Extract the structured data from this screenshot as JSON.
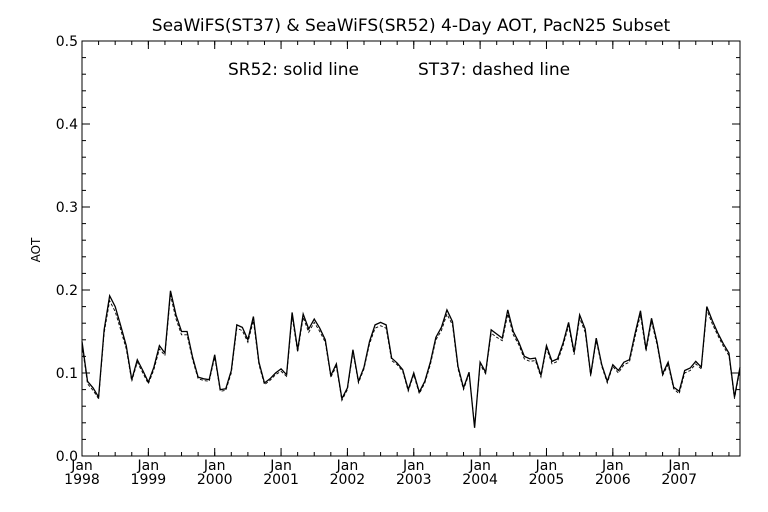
{
  "chart_data": {
    "type": "line",
    "title": "SeaWiFS(ST37) & SeaWiFS(SR52) 4-Day AOT, PacN25 Subset",
    "annotation": {
      "sr52": "SR52: solid line",
      "st37": "ST37: dashed line"
    },
    "ylabel": "AOT",
    "xlabel": "",
    "ylim": [
      0.0,
      0.5
    ],
    "xlim": [
      "1998-01",
      "2007-12"
    ],
    "yticks": [
      "0.0",
      "0.1",
      "0.2",
      "0.3",
      "0.4",
      "0.5"
    ],
    "xticks": [
      {
        "month": "Jan",
        "year": "1998"
      },
      {
        "month": "Jan",
        "year": "1999"
      },
      {
        "month": "Jan",
        "year": "2000"
      },
      {
        "month": "Jan",
        "year": "2001"
      },
      {
        "month": "Jan",
        "year": "2002"
      },
      {
        "month": "Jan",
        "year": "2003"
      },
      {
        "month": "Jan",
        "year": "2004"
      },
      {
        "month": "Jan",
        "year": "2005"
      },
      {
        "month": "Jan",
        "year": "2006"
      },
      {
        "month": "Jan",
        "year": "2007"
      }
    ],
    "x": [
      "1998-01",
      "1998-02",
      "1998-03",
      "1998-04",
      "1998-05",
      "1998-06",
      "1998-07",
      "1998-08",
      "1998-09",
      "1998-10",
      "1998-11",
      "1998-12",
      "1999-01",
      "1999-02",
      "1999-03",
      "1999-04",
      "1999-05",
      "1999-06",
      "1999-07",
      "1999-08",
      "1999-09",
      "1999-10",
      "1999-11",
      "1999-12",
      "2000-01",
      "2000-02",
      "2000-03",
      "2000-04",
      "2000-05",
      "2000-06",
      "2000-07",
      "2000-08",
      "2000-09",
      "2000-10",
      "2000-11",
      "2000-12",
      "2001-01",
      "2001-02",
      "2001-03",
      "2001-04",
      "2001-05",
      "2001-06",
      "2001-07",
      "2001-08",
      "2001-09",
      "2001-10",
      "2001-11",
      "2001-12",
      "2002-01",
      "2002-02",
      "2002-03",
      "2002-04",
      "2002-05",
      "2002-06",
      "2002-07",
      "2002-08",
      "2002-09",
      "2002-10",
      "2002-11",
      "2002-12",
      "2003-01",
      "2003-02",
      "2003-03",
      "2003-04",
      "2003-05",
      "2003-06",
      "2003-07",
      "2003-08",
      "2003-09",
      "2003-10",
      "2003-11",
      "2003-12",
      "2004-01",
      "2004-02",
      "2004-03",
      "2004-04",
      "2004-05",
      "2004-06",
      "2004-07",
      "2004-08",
      "2004-09",
      "2004-10",
      "2004-11",
      "2004-12",
      "2005-01",
      "2005-02",
      "2005-03",
      "2005-04",
      "2005-05",
      "2005-06",
      "2005-07",
      "2005-08",
      "2005-09",
      "2005-10",
      "2005-11",
      "2005-12",
      "2006-01",
      "2006-02",
      "2006-03",
      "2006-04",
      "2006-05",
      "2006-06",
      "2006-07",
      "2006-08",
      "2006-09",
      "2006-10",
      "2006-11",
      "2006-12",
      "2007-01",
      "2007-02",
      "2007-03",
      "2007-04",
      "2007-05",
      "2007-06",
      "2007-07",
      "2007-08",
      "2007-09",
      "2007-10",
      "2007-11",
      "2007-12"
    ],
    "series": [
      {
        "name": "SR52",
        "style": "solid",
        "values": [
          0.138,
          0.09,
          0.082,
          0.071,
          0.152,
          0.193,
          0.18,
          0.157,
          0.133,
          0.092,
          0.116,
          0.103,
          0.089,
          0.107,
          0.133,
          0.124,
          0.199,
          0.17,
          0.15,
          0.15,
          0.119,
          0.095,
          0.093,
          0.092,
          0.122,
          0.08,
          0.081,
          0.103,
          0.158,
          0.155,
          0.14,
          0.168,
          0.113,
          0.088,
          0.093,
          0.1,
          0.105,
          0.098,
          0.173,
          0.128,
          0.171,
          0.153,
          0.165,
          0.154,
          0.14,
          0.097,
          0.111,
          0.069,
          0.082,
          0.128,
          0.09,
          0.107,
          0.138,
          0.158,
          0.161,
          0.158,
          0.118,
          0.112,
          0.104,
          0.08,
          0.1,
          0.077,
          0.09,
          0.113,
          0.143,
          0.155,
          0.176,
          0.162,
          0.108,
          0.082,
          0.101,
          0.034,
          0.113,
          0.101,
          0.152,
          0.147,
          0.142,
          0.176,
          0.15,
          0.137,
          0.12,
          0.117,
          0.118,
          0.097,
          0.133,
          0.114,
          0.117,
          0.136,
          0.161,
          0.125,
          0.17,
          0.153,
          0.098,
          0.142,
          0.11,
          0.09,
          0.11,
          0.103,
          0.113,
          0.116,
          0.147,
          0.175,
          0.129,
          0.166,
          0.137,
          0.099,
          0.113,
          0.083,
          0.078,
          0.103,
          0.106,
          0.114,
          0.107,
          0.18,
          0.163,
          0.148,
          0.135,
          0.124,
          0.071,
          0.107
        ]
      },
      {
        "name": "ST37",
        "style": "dashed",
        "values": [
          0.134,
          0.087,
          0.079,
          0.069,
          0.148,
          0.187,
          0.174,
          0.152,
          0.129,
          0.09,
          0.113,
          0.1,
          0.087,
          0.104,
          0.129,
          0.121,
          0.194,
          0.165,
          0.146,
          0.146,
          0.116,
          0.093,
          0.091,
          0.09,
          0.119,
          0.078,
          0.079,
          0.1,
          0.154,
          0.151,
          0.137,
          0.163,
          0.11,
          0.086,
          0.091,
          0.098,
          0.102,
          0.096,
          0.168,
          0.125,
          0.167,
          0.149,
          0.161,
          0.15,
          0.137,
          0.095,
          0.108,
          0.067,
          0.08,
          0.125,
          0.088,
          0.105,
          0.135,
          0.154,
          0.157,
          0.154,
          0.115,
          0.11,
          0.102,
          0.078,
          0.098,
          0.075,
          0.088,
          0.11,
          0.14,
          0.151,
          0.171,
          0.158,
          0.105,
          0.08,
          0.099,
          0.036,
          0.11,
          0.099,
          0.148,
          0.143,
          0.139,
          0.171,
          0.146,
          0.134,
          0.117,
          0.114,
          0.115,
          0.095,
          0.13,
          0.111,
          0.114,
          0.133,
          0.157,
          0.122,
          0.166,
          0.149,
          0.096,
          0.139,
          0.108,
          0.088,
          0.108,
          0.1,
          0.11,
          0.113,
          0.143,
          0.17,
          0.126,
          0.162,
          0.134,
          0.097,
          0.11,
          0.081,
          0.075,
          0.1,
          0.103,
          0.111,
          0.105,
          0.176,
          0.159,
          0.145,
          0.132,
          0.121,
          0.069,
          0.104
        ]
      }
    ],
    "grid": false,
    "legend": "none"
  }
}
